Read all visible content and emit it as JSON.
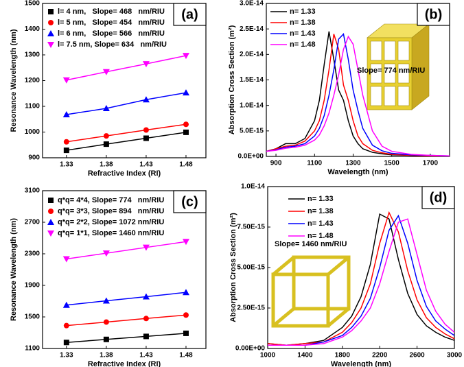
{
  "chart_data": [
    {
      "type": "line",
      "panel_label": "(a)",
      "x_label": "Refractive Index (RI)",
      "y_label": "Resonance Wavelength (nm)",
      "x": [
        1.33,
        1.38,
        1.43,
        1.48
      ],
      "xlim": [
        1.3,
        1.505
      ],
      "xticks": [
        1.33,
        1.38,
        1.43,
        1.48
      ],
      "ylim": [
        900,
        1500
      ],
      "yticks": [
        900,
        1000,
        1100,
        1200,
        1300,
        1400,
        1500
      ],
      "series": [
        {
          "name": "l= 4 nm,   Slope= 468   nm/RIU",
          "color": "#000000",
          "marker": "square",
          "values": [
            929,
            953,
            976,
            999
          ]
        },
        {
          "name": "l= 5 nm,   Slope= 454   nm/RIU",
          "color": "#ff0000",
          "marker": "circle",
          "values": [
            962,
            985,
            1008,
            1030
          ]
        },
        {
          "name": "l= 6 nm,   Slope= 566   nm/RIU",
          "color": "#0000ff",
          "marker": "triangle-up",
          "values": [
            1068,
            1092,
            1126,
            1153
          ]
        },
        {
          "name": "l= 7.5 nm, Slope= 634   nm/RIU",
          "color": "#ff00ff",
          "marker": "triangle-down",
          "values": [
            1202,
            1234,
            1265,
            1297
          ]
        }
      ]
    },
    {
      "type": "line",
      "panel_label": "(b)",
      "x_label": "Wavelength (nm)",
      "y_label": "Absorption Cross Section (m²)",
      "annotation": "Slope= 774 nm/RIU",
      "x": [
        850,
        900,
        950,
        1000,
        1050,
        1100,
        1125,
        1150,
        1175,
        1200,
        1225,
        1250,
        1275,
        1300,
        1325,
        1350,
        1400,
        1450,
        1500,
        1600,
        1700,
        1800
      ],
      "xlim": [
        850,
        1800
      ],
      "xticks": [
        900,
        1100,
        1300,
        1500,
        1700
      ],
      "ylim": [
        0,
        3e-14
      ],
      "yticks": [
        {
          "value": 0,
          "label": "0.0E+00"
        },
        {
          "value": 5e-15,
          "label": "5.0E-15"
        },
        {
          "value": 1e-14,
          "label": "1.0E-14"
        },
        {
          "value": 1.5e-14,
          "label": "1.5E-14"
        },
        {
          "value": 2e-14,
          "label": "2.0E-14"
        },
        {
          "value": 2.5e-14,
          "label": "2.5E-14"
        },
        {
          "value": 3e-14,
          "label": "3.0E-14"
        }
      ],
      "series": [
        {
          "name": "n= 1.33",
          "color": "#000000",
          "values": [
            1e-15,
            1.5e-15,
            2.5e-15,
            2.5e-15,
            3.5e-15,
            7e-15,
            1.1e-14,
            1.8e-14,
            2.45e-14,
            1.9e-14,
            1.3e-14,
            1.1e-14,
            7e-15,
            4e-15,
            2.5e-15,
            1.5e-15,
            8e-16,
            5e-16,
            3e-16,
            2e-16,
            1e-16,
            1e-16
          ]
        },
        {
          "name": "n= 1.38",
          "color": "#ff0000",
          "values": [
            1e-15,
            1.5e-15,
            2e-15,
            2.2e-15,
            3e-15,
            5e-15,
            7e-15,
            1.1e-14,
            1.7e-14,
            2.4e-14,
            2.1e-14,
            1.4e-14,
            1.1e-14,
            7e-15,
            4e-15,
            2.5e-15,
            1.2e-15,
            7e-16,
            4e-16,
            2e-16,
            1e-16,
            1e-16
          ]
        },
        {
          "name": "n= 1.43",
          "color": "#0000ff",
          "values": [
            1e-15,
            1.3e-15,
            1.8e-15,
            2e-15,
            2.5e-15,
            4e-15,
            5.5e-15,
            8e-15,
            1.2e-14,
            1.7e-14,
            2.3e-14,
            2.4e-14,
            1.9e-14,
            1.3e-14,
            9e-15,
            5.5e-15,
            2.2e-15,
            1.1e-15,
            6e-16,
            3e-16,
            2e-16,
            1e-16
          ]
        },
        {
          "name": "n= 1.48",
          "color": "#ff00ff",
          "values": [
            1e-15,
            1.2e-15,
            1.6e-15,
            1.8e-15,
            2.2e-15,
            3.2e-15,
            4.2e-15,
            6e-15,
            8.5e-15,
            1.2e-14,
            1.6e-14,
            2.1e-14,
            2.35e-14,
            2.2e-14,
            1.7e-14,
            1.2e-14,
            5e-15,
            2e-15,
            1e-15,
            4e-16,
            2e-16,
            1e-16
          ]
        }
      ]
    },
    {
      "type": "line",
      "panel_label": "(c)",
      "x_label": "Refractive Index (RI)",
      "y_label": "Resonance Wavelength (nm)",
      "x": [
        1.33,
        1.38,
        1.43,
        1.48
      ],
      "xlim": [
        1.3,
        1.505
      ],
      "xticks": [
        1.33,
        1.38,
        1.43,
        1.48
      ],
      "ylim": [
        1100,
        3100
      ],
      "yticks": [
        1100,
        1500,
        1900,
        2300,
        2700,
        3100
      ],
      "series": [
        {
          "name": "q*q= 4*4, Slope= 774   nm/RIU",
          "color": "#000000",
          "marker": "square",
          "values": [
            1176,
            1215,
            1253,
            1292
          ]
        },
        {
          "name": "q*q= 3*3, Slope= 894   nm/RIU",
          "color": "#ff0000",
          "marker": "circle",
          "values": [
            1390,
            1435,
            1480,
            1524
          ]
        },
        {
          "name": "q*q= 2*2, Slope= 1072 nm/RIU",
          "color": "#0000ff",
          "marker": "triangle-up",
          "values": [
            1650,
            1704,
            1757,
            1811
          ]
        },
        {
          "name": "q*q= 1*1, Slope= 1460 nm/RIU",
          "color": "#ff00ff",
          "marker": "triangle-down",
          "values": [
            2235,
            2308,
            2381,
            2454
          ]
        }
      ]
    },
    {
      "type": "line",
      "panel_label": "(d)",
      "x_label": "Wavelength (nm)",
      "y_label": "Absorption Cross Section (m²)",
      "annotation": "Slope= 1460 nm/RIU",
      "x": [
        1000,
        1200,
        1400,
        1600,
        1800,
        1900,
        2000,
        2100,
        2200,
        2300,
        2400,
        2500,
        2600,
        2700,
        2800,
        2900,
        3000
      ],
      "xlim": [
        1000,
        3000
      ],
      "xticks": [
        1000,
        1400,
        1800,
        2200,
        2600,
        3000
      ],
      "ylim": [
        0,
        1e-14
      ],
      "yticks": [
        {
          "value": 0,
          "label": "0.00E+00"
        },
        {
          "value": 2.5e-15,
          "label": "2.50E-15"
        },
        {
          "value": 5e-15,
          "label": "5.00E-15"
        },
        {
          "value": 7.5e-15,
          "label": "7.50E-15"
        },
        {
          "value": 1e-14,
          "label": "1.0E-14"
        }
      ],
      "series": [
        {
          "name": "n= 1.33",
          "color": "#000000",
          "values": [
            3e-16,
            2e-16,
            3e-16,
            5e-16,
            1.3e-15,
            2e-15,
            3.2e-15,
            5.2e-15,
            8.3e-15,
            8e-15,
            5.5e-15,
            3.4e-15,
            2.1e-15,
            1.4e-15,
            1e-15,
            7e-16,
            5e-16
          ]
        },
        {
          "name": "n= 1.38",
          "color": "#ff0000",
          "values": [
            3e-16,
            2e-16,
            3e-16,
            4e-16,
            1e-15,
            1.6e-15,
            2.5e-15,
            4e-15,
            6.5e-15,
            8.4e-15,
            7.2e-15,
            4.8e-15,
            3e-15,
            1.9e-15,
            1.3e-15,
            9e-16,
            6e-16
          ]
        },
        {
          "name": "n= 1.43",
          "color": "#0000ff",
          "values": [
            2e-16,
            2e-16,
            2e-16,
            4e-16,
            8e-16,
            1.3e-15,
            2e-15,
            3.1e-15,
            5e-15,
            7.3e-15,
            8.2e-15,
            6.5e-15,
            4.2e-15,
            2.6e-15,
            1.7e-15,
            1.2e-15,
            8e-16
          ]
        },
        {
          "name": "n= 1.48",
          "color": "#ff00ff",
          "values": [
            2e-16,
            2e-16,
            2e-16,
            3e-16,
            7e-16,
            1.1e-15,
            1.7e-15,
            2.5e-15,
            4e-15,
            6e-15,
            7.8e-15,
            8e-15,
            5.8e-15,
            3.6e-15,
            2.3e-15,
            1.5e-15,
            1e-15
          ]
        }
      ]
    }
  ]
}
